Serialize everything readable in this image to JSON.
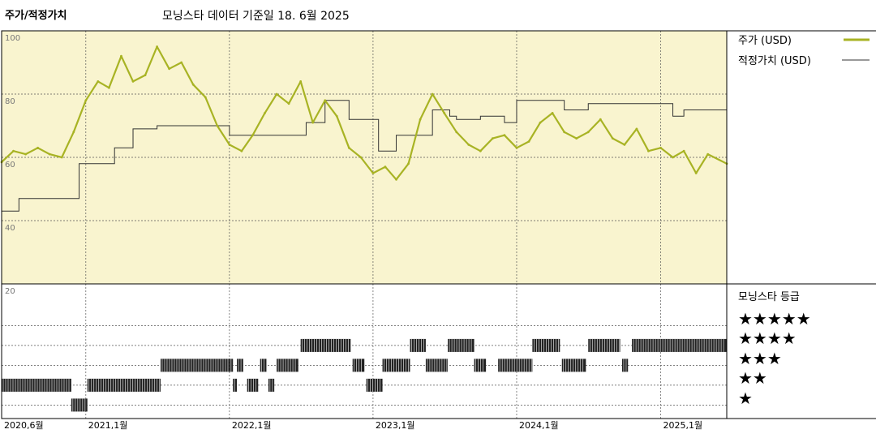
{
  "header": {
    "title": "주가/적정가치",
    "subtitle": "모닝스타 데이터 기준일 18. 6월 2025"
  },
  "legend": {
    "price_label": "주가 (USD)",
    "fair_value_label": "적정가치 (USD)",
    "rating_title": "모닝스타 등급",
    "star_levels": [
      "★★★★★",
      "★★★★",
      "★★★",
      "★★",
      "★"
    ]
  },
  "colors": {
    "price": "#a8b324",
    "fair_value": "#333333",
    "plot_bg": "#f9f4cf",
    "grid": "#555555",
    "rating": "#222222"
  },
  "chart_data": [
    {
      "type": "line",
      "title": "",
      "x_unit": "date",
      "xlim": [
        "2020-06-01",
        "2025-06-18"
      ],
      "ylim": [
        20,
        100
      ],
      "y_ticks": [
        20,
        40,
        60,
        80,
        100
      ],
      "x_tick_labels": [
        "2020,6월",
        "2021,1월",
        "2022,1월",
        "2023,1월",
        "2024,1월",
        "2025,1월"
      ],
      "x_tick_dates": [
        "2020-06-01",
        "2021-01-01",
        "2022-01-01",
        "2023-01-01",
        "2024-01-01",
        "2025-01-01"
      ],
      "grid": true,
      "legend": "right",
      "series": [
        {
          "name": "주가 (USD)",
          "points": [
            [
              "2020-06-01",
              58.5
            ],
            [
              "2020-07-01",
              62
            ],
            [
              "2020-08-01",
              61
            ],
            [
              "2020-09-01",
              63
            ],
            [
              "2020-10-01",
              61
            ],
            [
              "2020-11-01",
              60
            ],
            [
              "2020-12-01",
              68
            ],
            [
              "2021-01-01",
              78
            ],
            [
              "2021-02-01",
              84
            ],
            [
              "2021-03-01",
              82
            ],
            [
              "2021-04-01",
              92
            ],
            [
              "2021-05-01",
              84
            ],
            [
              "2021-06-01",
              86
            ],
            [
              "2021-07-01",
              95
            ],
            [
              "2021-08-01",
              88
            ],
            [
              "2021-09-01",
              90
            ],
            [
              "2021-10-01",
              83
            ],
            [
              "2021-11-01",
              79
            ],
            [
              "2021-12-01",
              70
            ],
            [
              "2022-01-01",
              64
            ],
            [
              "2022-02-01",
              62
            ],
            [
              "2022-03-01",
              67
            ],
            [
              "2022-04-01",
              74
            ],
            [
              "2022-05-01",
              80
            ],
            [
              "2022-06-01",
              77
            ],
            [
              "2022-07-01",
              84
            ],
            [
              "2022-08-01",
              71
            ],
            [
              "2022-09-01",
              78
            ],
            [
              "2022-10-01",
              73
            ],
            [
              "2022-11-01",
              63
            ],
            [
              "2022-12-01",
              60
            ],
            [
              "2023-01-01",
              55
            ],
            [
              "2023-02-01",
              57
            ],
            [
              "2023-03-01",
              53
            ],
            [
              "2023-04-01",
              58
            ],
            [
              "2023-05-01",
              72
            ],
            [
              "2023-06-01",
              80
            ],
            [
              "2023-07-01",
              74
            ],
            [
              "2023-08-01",
              68
            ],
            [
              "2023-09-01",
              64
            ],
            [
              "2023-10-01",
              62
            ],
            [
              "2023-11-01",
              66
            ],
            [
              "2023-12-01",
              67
            ],
            [
              "2024-01-01",
              63
            ],
            [
              "2024-02-01",
              65
            ],
            [
              "2024-03-01",
              71
            ],
            [
              "2024-04-01",
              74
            ],
            [
              "2024-05-01",
              68
            ],
            [
              "2024-06-01",
              66
            ],
            [
              "2024-07-01",
              68
            ],
            [
              "2024-08-01",
              72
            ],
            [
              "2024-09-01",
              66
            ],
            [
              "2024-10-01",
              64
            ],
            [
              "2024-11-01",
              69
            ],
            [
              "2024-12-01",
              62
            ],
            [
              "2025-01-01",
              63
            ],
            [
              "2025-02-01",
              60
            ],
            [
              "2025-03-01",
              62
            ],
            [
              "2025-04-01",
              55
            ],
            [
              "2025-05-01",
              61
            ],
            [
              "2025-06-18",
              58
            ]
          ]
        },
        {
          "name": "적정가치 (USD)",
          "step": true,
          "points": [
            [
              "2020-06-01",
              43
            ],
            [
              "2020-07-15",
              47
            ],
            [
              "2020-12-01",
              47
            ],
            [
              "2020-12-15",
              58
            ],
            [
              "2021-03-15",
              63
            ],
            [
              "2021-05-01",
              69
            ],
            [
              "2021-07-01",
              70
            ],
            [
              "2021-11-01",
              70
            ],
            [
              "2022-01-01",
              67
            ],
            [
              "2022-06-01",
              67
            ],
            [
              "2022-07-15",
              71
            ],
            [
              "2022-09-01",
              78
            ],
            [
              "2022-11-01",
              72
            ],
            [
              "2023-01-01",
              72
            ],
            [
              "2023-01-15",
              62
            ],
            [
              "2023-03-01",
              67
            ],
            [
              "2023-06-01",
              75
            ],
            [
              "2023-07-15",
              73
            ],
            [
              "2023-08-01",
              72
            ],
            [
              "2023-10-01",
              73
            ],
            [
              "2023-12-01",
              71
            ],
            [
              "2024-01-01",
              78
            ],
            [
              "2024-05-01",
              75
            ],
            [
              "2024-07-01",
              77
            ],
            [
              "2025-01-01",
              77
            ],
            [
              "2025-02-01",
              73
            ],
            [
              "2025-03-01",
              75
            ],
            [
              "2025-06-18",
              75
            ]
          ]
        }
      ]
    },
    {
      "type": "heatmap",
      "title": "모닝스타 등급",
      "x_unit": "date",
      "xlim": [
        "2020-06-01",
        "2025-06-18"
      ],
      "rating_levels": [
        5,
        4,
        3,
        2,
        1
      ],
      "segments": [
        {
          "stars": 2,
          "start": "2020-06-01",
          "end": "2020-11-25"
        },
        {
          "stars": 1,
          "start": "2020-11-25",
          "end": "2021-01-05"
        },
        {
          "stars": 2,
          "start": "2021-01-05",
          "end": "2021-07-10"
        },
        {
          "stars": 3,
          "start": "2021-07-10",
          "end": "2022-01-01"
        },
        {
          "stars": 3,
          "start": "2022-01-01",
          "end": "2022-01-10"
        },
        {
          "stars": 2,
          "start": "2022-01-10",
          "end": "2022-01-20"
        },
        {
          "stars": 3,
          "start": "2022-01-20",
          "end": "2022-02-05"
        },
        {
          "stars": 2,
          "start": "2022-02-15",
          "end": "2022-03-15"
        },
        {
          "stars": 3,
          "start": "2022-03-20",
          "end": "2022-04-05"
        },
        {
          "stars": 2,
          "start": "2022-04-10",
          "end": "2022-04-25"
        },
        {
          "stars": 3,
          "start": "2022-05-01",
          "end": "2022-06-25"
        },
        {
          "stars": 4,
          "start": "2022-07-01",
          "end": "2022-11-05"
        },
        {
          "stars": 3,
          "start": "2022-11-10",
          "end": "2022-12-10"
        },
        {
          "stars": 2,
          "start": "2022-12-15",
          "end": "2023-01-25"
        },
        {
          "stars": 3,
          "start": "2023-01-25",
          "end": "2023-04-05"
        },
        {
          "stars": 4,
          "start": "2023-04-05",
          "end": "2023-05-15"
        },
        {
          "stars": 3,
          "start": "2023-05-15",
          "end": "2023-07-10"
        },
        {
          "stars": 4,
          "start": "2023-07-10",
          "end": "2023-09-15"
        },
        {
          "stars": 3,
          "start": "2023-09-15",
          "end": "2023-10-15"
        },
        {
          "stars": 3,
          "start": "2023-11-15",
          "end": "2024-02-10"
        },
        {
          "stars": 4,
          "start": "2024-02-10",
          "end": "2024-04-20"
        },
        {
          "stars": 3,
          "start": "2024-04-25",
          "end": "2024-06-25"
        },
        {
          "stars": 4,
          "start": "2024-07-01",
          "end": "2024-09-20"
        },
        {
          "stars": 3,
          "start": "2024-09-25",
          "end": "2024-10-10"
        },
        {
          "stars": 4,
          "start": "2024-10-20",
          "end": "2025-06-18"
        }
      ]
    }
  ]
}
